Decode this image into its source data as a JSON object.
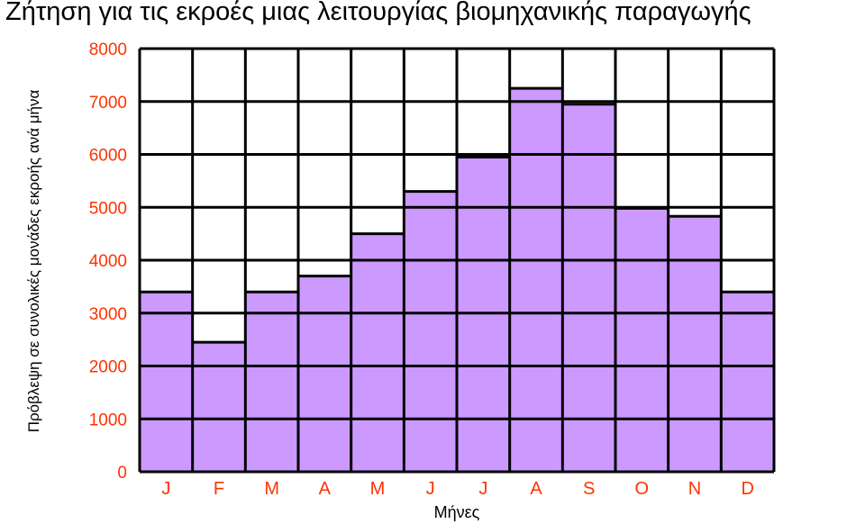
{
  "chart_data": {
    "type": "bar",
    "title": "Ζήτηση για τις εκροές μιας λειτουργίας βιομηχανικής παραγωγής",
    "xlabel": "Μήνες",
    "ylabel": "Πρόβλεψη σε συνολικές μονάδες εκροής ανά μήνα",
    "categories": [
      "J",
      "F",
      "M",
      "A",
      "M",
      "J",
      "J",
      "A",
      "S",
      "O",
      "N",
      "D"
    ],
    "values": [
      3400,
      2450,
      3400,
      3700,
      4500,
      5300,
      5950,
      7250,
      6950,
      4980,
      4830,
      3400
    ],
    "ylim": [
      0,
      8000
    ],
    "yticks": [
      "0",
      "1000",
      "2000",
      "3000",
      "4000",
      "5000",
      "6000",
      "7000",
      "8000"
    ],
    "grid": true,
    "colors": {
      "bar": "#cc99ff",
      "tick_labels": "#ff3300",
      "grid": "#000000"
    }
  }
}
